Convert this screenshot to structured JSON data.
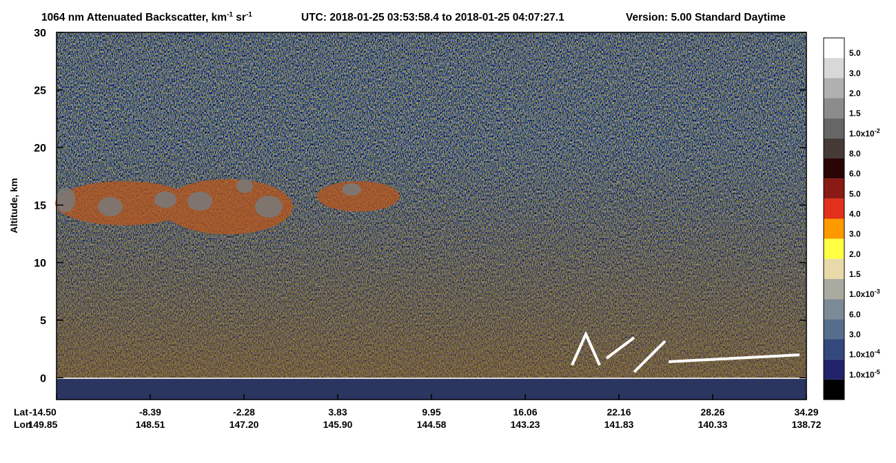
{
  "chart_data": {
    "type": "heatmap",
    "title_parts": [
      "1064 nm Attenuated Backscatter, km",
      "-1",
      " sr",
      "-1"
    ],
    "time_range": "UTC:  2018-01-25 03:53:58.4  to  2018-01-25 04:07:27.1",
    "version": "Version: 5.00  Standard  Daytime",
    "y_label": "Altitude, km",
    "ylim": [
      -1.9,
      30
    ],
    "yticks": [
      0,
      5,
      10,
      15,
      20,
      25,
      30
    ],
    "x_rows": [
      {
        "name": "Lat",
        "labels": [
          "-14.50",
          "-8.39",
          "-2.28",
          "3.83",
          "9.95",
          "16.06",
          "22.16",
          "28.26",
          "34.29"
        ]
      },
      {
        "name": "Lon",
        "labels": [
          "149.85",
          "148.51",
          "147.20",
          "145.90",
          "144.58",
          "143.23",
          "141.83",
          "140.33",
          "138.72"
        ]
      }
    ],
    "colorbar": {
      "colors": [
        "#ffffff",
        "#d8d8d8",
        "#b0b0b0",
        "#8c8c8c",
        "#666666",
        "#453a36",
        "#2a0505",
        "#8a1a14",
        "#e2301a",
        "#ff9900",
        "#ffff44",
        "#e8d9aa",
        "#a9aaa0",
        "#7c8a96",
        "#566e8c",
        "#33487c",
        "#22226a",
        "#000000"
      ],
      "labels": [
        "5.0",
        "3.0",
        "2.0",
        "1.5",
        {
          "text": "1.0x10",
          "exp": "-2"
        },
        "8.0",
        "6.0",
        "5.0",
        "4.0",
        "3.0",
        "2.0",
        "1.5",
        {
          "text": "1.0x10",
          "exp": "-3"
        },
        "6.0",
        "3.0",
        {
          "text": "1.0x10",
          "exp": "-4"
        },
        {
          "text": "1.0x10",
          "exp": "-5"
        }
      ]
    }
  }
}
